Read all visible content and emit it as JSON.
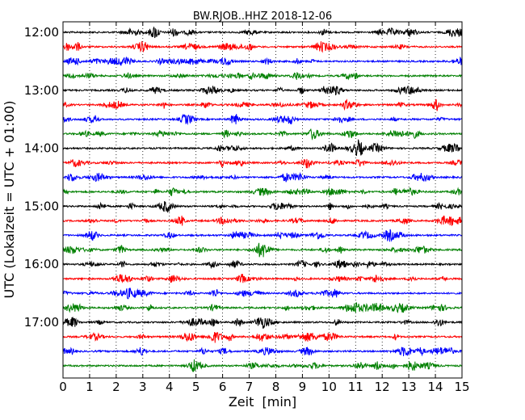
{
  "chart_data": {
    "type": "line",
    "title": "BW.RJOB..HHZ 2018-12-06",
    "xlabel": "Zeit  [min]",
    "ylabel": "UTC (Lokalzeit = UTC + 01:00)",
    "xlim": [
      0,
      15
    ],
    "x_ticks": [
      0,
      1,
      2,
      3,
      4,
      5,
      6,
      7,
      8,
      9,
      10,
      11,
      12,
      13,
      14,
      15
    ],
    "y_tick_labels": [
      "12:00",
      "13:00",
      "14:00",
      "15:00",
      "16:00",
      "17:00"
    ],
    "y_tick_rows": [
      0,
      4,
      8,
      12,
      16,
      20
    ],
    "grid": "vertical dotted",
    "colors": [
      "#000000",
      "#ff0000",
      "#0000ff",
      "#008000"
    ],
    "traces": [
      {
        "start": "12:00",
        "color": "#000000"
      },
      {
        "start": "12:15",
        "color": "#ff0000"
      },
      {
        "start": "12:30",
        "color": "#0000ff"
      },
      {
        "start": "12:45",
        "color": "#008000"
      },
      {
        "start": "13:00",
        "color": "#000000"
      },
      {
        "start": "13:15",
        "color": "#ff0000"
      },
      {
        "start": "13:30",
        "color": "#0000ff"
      },
      {
        "start": "13:45",
        "color": "#008000"
      },
      {
        "start": "14:00",
        "color": "#000000"
      },
      {
        "start": "14:15",
        "color": "#ff0000"
      },
      {
        "start": "14:30",
        "color": "#0000ff"
      },
      {
        "start": "14:45",
        "color": "#008000"
      },
      {
        "start": "15:00",
        "color": "#000000"
      },
      {
        "start": "15:15",
        "color": "#ff0000"
      },
      {
        "start": "15:30",
        "color": "#0000ff"
      },
      {
        "start": "15:45",
        "color": "#008000"
      },
      {
        "start": "16:00",
        "color": "#000000"
      },
      {
        "start": "16:15",
        "color": "#ff0000"
      },
      {
        "start": "16:30",
        "color": "#0000ff"
      },
      {
        "start": "16:45",
        "color": "#008000"
      },
      {
        "start": "17:00",
        "color": "#000000"
      },
      {
        "start": "17:15",
        "color": "#ff0000"
      },
      {
        "start": "17:30",
        "color": "#0000ff"
      },
      {
        "start": "17:45",
        "color": "#008000"
      }
    ]
  }
}
